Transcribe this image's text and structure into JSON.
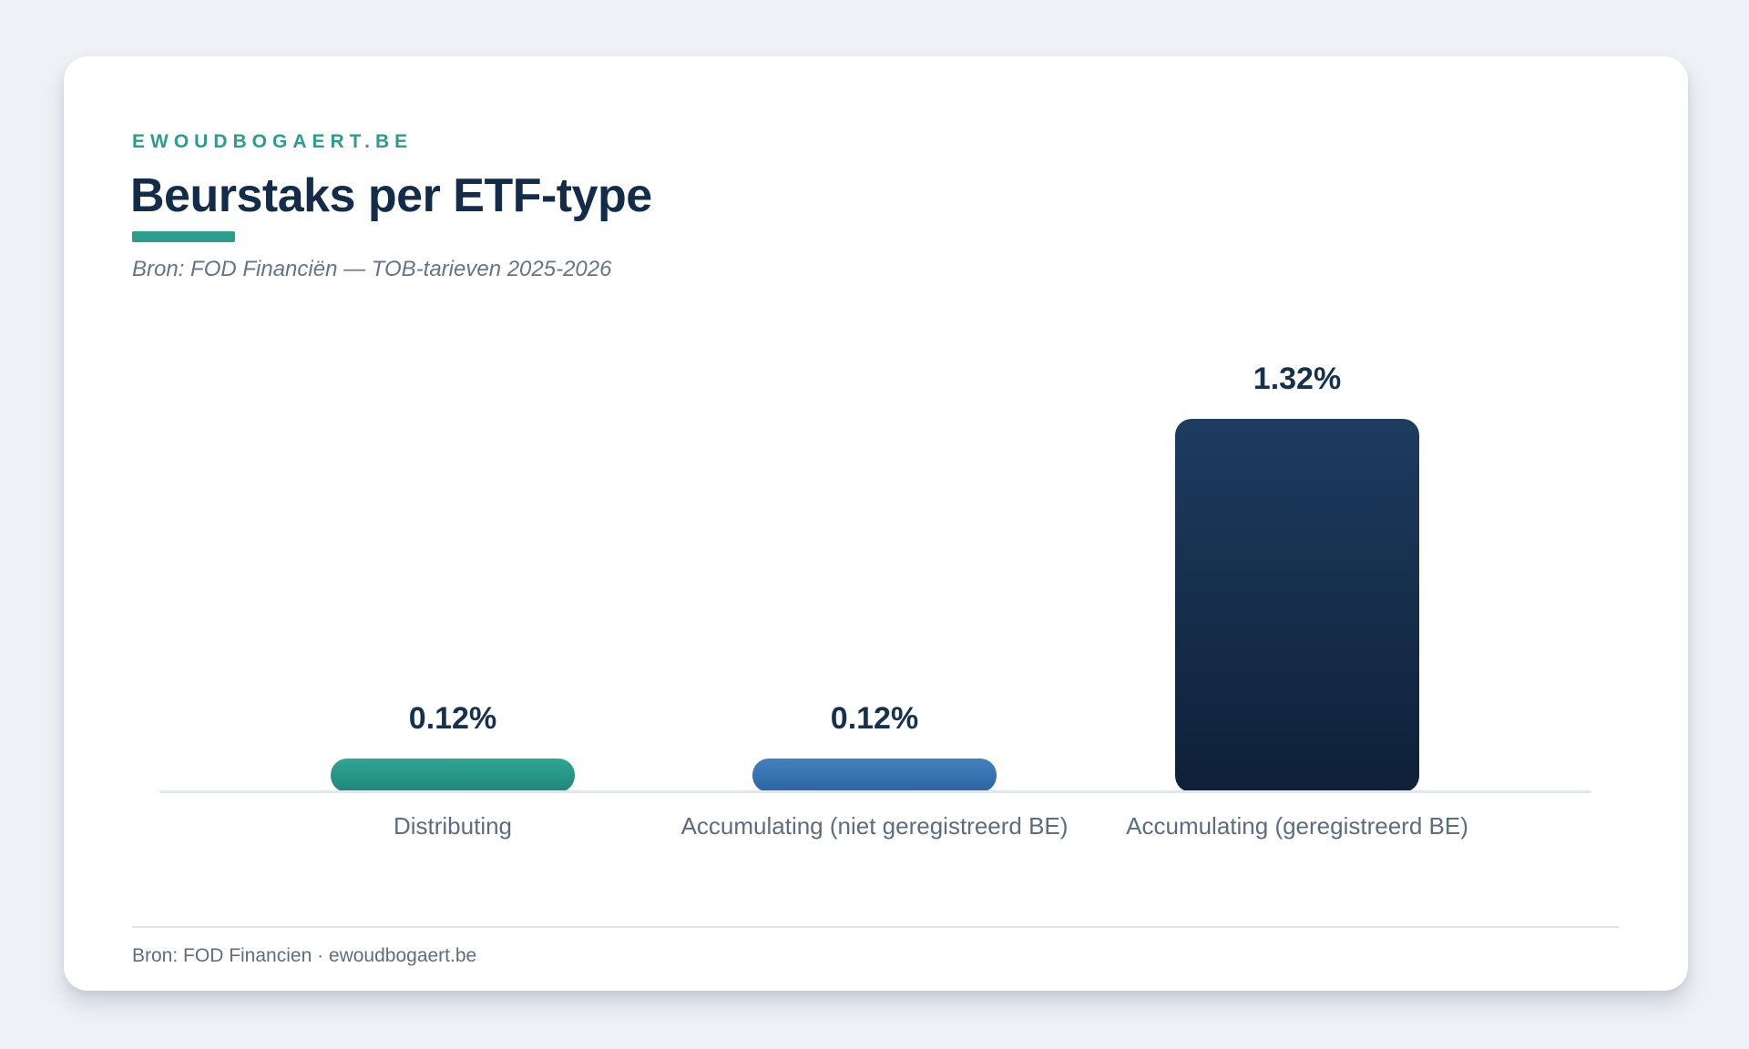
{
  "page": {
    "background_color": "#eef1f5",
    "card_color": "#ffffff"
  },
  "header": {
    "kicker": "EWOUDBOGAERT.BE",
    "title": "Beurstaks per ETF-type",
    "subtitle": "Bron: FOD Financiën — TOB-tarieven 2025-2026",
    "accent_color": "#2a9d8f",
    "title_color": "#132c49"
  },
  "footer": {
    "source": "Bron: FOD Financien · ewoudbogaert.be"
  },
  "chart_data": {
    "type": "bar",
    "title": "Beurstaks per ETF-type",
    "source": "Bron: FOD Financiën — TOB-tarieven 2025-2026",
    "categories": [
      "Distributing",
      "Accumulating (niet geregistreerd BE)",
      "Accumulating (geregistreerd BE)"
    ],
    "values": [
      0.12,
      0.12,
      1.32
    ],
    "unit": "%",
    "ylim": [
      0,
      1.45
    ],
    "grid": false,
    "y_axis_shown": false,
    "baseline_color": "#e2e7ed",
    "bars": [
      {
        "category": "Distributing",
        "value": 0.12,
        "value_label": "0.12%",
        "color_top": "#31a593",
        "color_bottom": "#1f8678"
      },
      {
        "category": "Accumulating (niet geregistreerd BE)",
        "value": 0.12,
        "value_label": "0.12%",
        "color_top": "#4280bd",
        "color_bottom": "#2e64a3"
      },
      {
        "category": "Accumulating (geregistreerd BE)",
        "value": 1.32,
        "value_label": "1.32%",
        "color_top": "#1d3c60",
        "color_bottom": "#0f2038"
      }
    ]
  }
}
